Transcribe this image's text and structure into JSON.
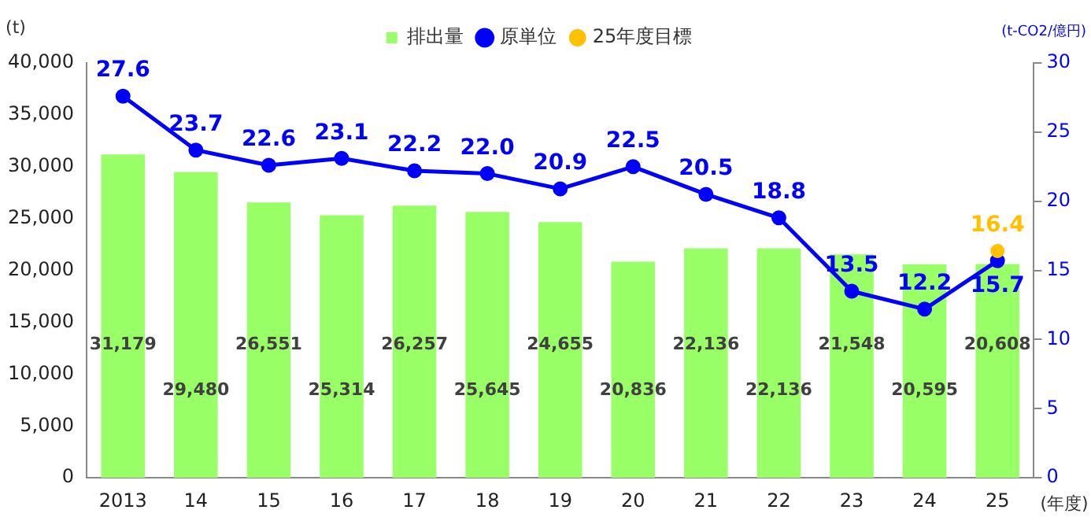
{
  "chart_data": {
    "type": "bar",
    "categories": [
      "2013",
      "14",
      "15",
      "16",
      "17",
      "18",
      "19",
      "20",
      "21",
      "22",
      "23",
      "24",
      "25"
    ],
    "series": [
      {
        "name": "排出量",
        "color": "#99ff66",
        "values": [
          31179,
          29480,
          26551,
          25314,
          26257,
          25645,
          24655,
          20836,
          22136,
          22136,
          21548,
          20595,
          20608
        ],
        "value_labels": [
          "31,179",
          "29,480",
          "26,551",
          "25,314",
          "26,257",
          "25,645",
          "24,655",
          "20,836",
          "22,136",
          "22,136",
          "21,548",
          "20,595",
          "20,608"
        ]
      },
      {
        "name": "原単位",
        "type": "line",
        "axis": "y2",
        "color": "#0000ff",
        "values": [
          27.6,
          23.7,
          22.6,
          23.1,
          22.2,
          22.0,
          20.9,
          22.5,
          20.5,
          18.8,
          13.5,
          12.2,
          15.7
        ],
        "value_labels": [
          "27.6",
          "23.7",
          "22.6",
          "23.1",
          "22.2",
          "22.0",
          "20.9",
          "22.5",
          "20.5",
          "18.8",
          "13.5",
          "12.2",
          "15.7"
        ]
      },
      {
        "name": "25年度目標",
        "type": "scatter",
        "axis": "y2",
        "color": "#ffc000",
        "x": [
          "25"
        ],
        "values": [
          16.4
        ],
        "value_labels": [
          "16.4"
        ]
      }
    ],
    "ylabel": "(t)",
    "y2label": "(t-CO2/億円)",
    "xlabel": "(年度)",
    "ylim": [
      0,
      40000
    ],
    "yticks": [
      0,
      {
        "value": 5000,
        "label": "5,000"
      },
      {
        "value": 10000,
        "label": "10,000"
      },
      {
        "value": 15000,
        "label": "15,000"
      },
      {
        "value": 20000,
        "label": "20,000"
      },
      {
        "value": 25000,
        "label": "25,000"
      },
      {
        "value": 30000,
        "label": "30,000"
      },
      {
        "value": 35000,
        "label": "35,000"
      },
      {
        "value": 40000,
        "label": "40,000"
      }
    ],
    "y2lim": [
      0,
      30
    ],
    "y2ticks": [
      0,
      5,
      10,
      15,
      20,
      25,
      30
    ],
    "grid": false,
    "legend": "top right",
    "marker": "circle"
  }
}
